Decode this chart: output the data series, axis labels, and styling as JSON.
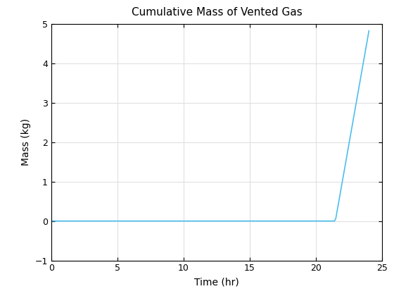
{
  "title": "Cumulative Mass of Vented Gas",
  "xlabel": "Time (hr)",
  "ylabel": "Mass (kg)",
  "xlim": [
    0,
    25
  ],
  "ylim": [
    -1,
    5
  ],
  "xticks": [
    0,
    5,
    10,
    15,
    20,
    25
  ],
  "yticks": [
    -1,
    0,
    1,
    2,
    3,
    4,
    5
  ],
  "line_color": "#4DBEEE",
  "line_width": 1.2,
  "x": [
    0,
    21.4,
    21.5,
    24.0
  ],
  "y": [
    0.0,
    0.0,
    0.07,
    4.82
  ],
  "background_color": "#FFFFFF",
  "grid_color": "#E0E0E0",
  "title_fontsize": 11,
  "label_fontsize": 10,
  "tick_fontsize": 9,
  "figure_width": 5.6,
  "figure_height": 4.2,
  "dpi": 100
}
